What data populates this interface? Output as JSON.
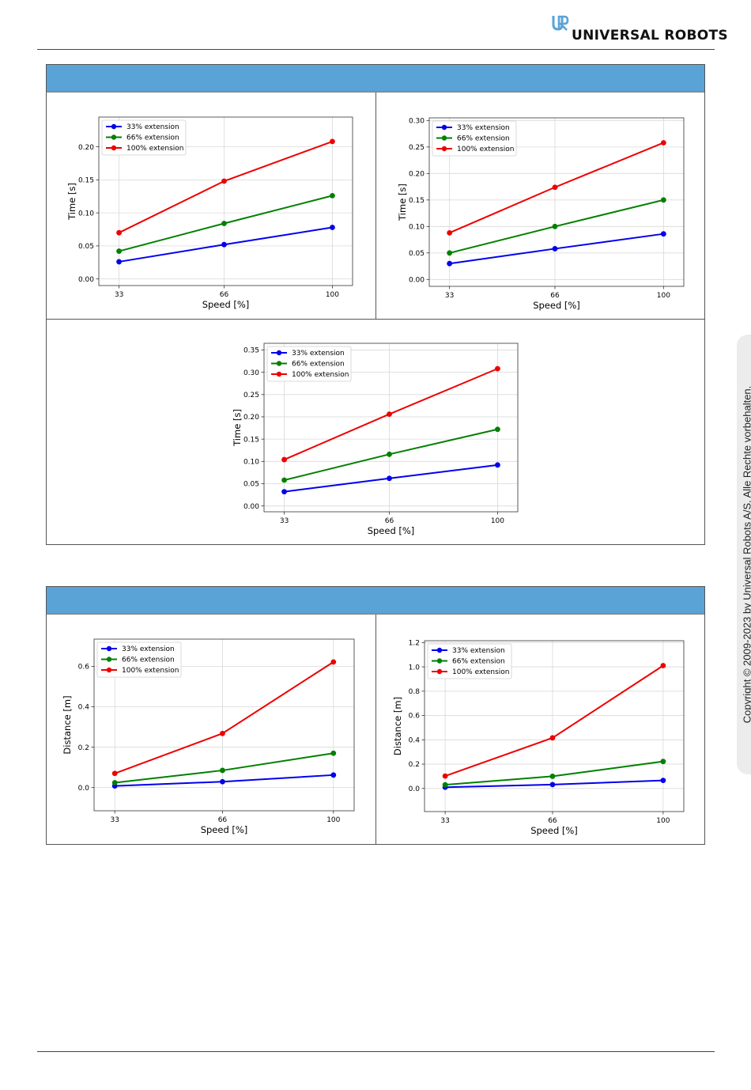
{
  "header": {
    "logo_text": "UNIVERSAL ROBOTS",
    "logo_mark_icon": "ur-logo-icon"
  },
  "colors": {
    "table_header": "#5aa3d6",
    "series_33": "#0000ee",
    "series_66": "#008000",
    "series_100": "#ee0000"
  },
  "sidebar": {
    "copyright": "Copyright © 2009-2023 by Universal Robots A/S. Alle Rechte vorbehalten."
  },
  "chart_data": [
    {
      "type": "line",
      "categories": [
        "33",
        "66",
        "100"
      ],
      "x": [
        33,
        66,
        100
      ],
      "xlabel": "Speed [%]",
      "ylabel": "Time [s]",
      "ylim": [
        -0.01,
        0.245
      ],
      "yticks": [
        0.0,
        0.05,
        0.1,
        0.15,
        0.2
      ],
      "ytick_labels": [
        "0.00",
        "0.05",
        "0.10",
        "0.15",
        "0.20"
      ],
      "grid": true,
      "legend": "upper-left",
      "series": [
        {
          "name": "33% extension",
          "color": "#0000ee",
          "values": [
            0.026,
            0.052,
            0.078
          ]
        },
        {
          "name": "66% extension",
          "color": "#008000",
          "values": [
            0.042,
            0.084,
            0.126
          ]
        },
        {
          "name": "100% extension",
          "color": "#ee0000",
          "values": [
            0.07,
            0.148,
            0.208
          ]
        }
      ]
    },
    {
      "type": "line",
      "categories": [
        "33",
        "66",
        "100"
      ],
      "x": [
        33,
        66,
        100
      ],
      "xlabel": "Speed [%]",
      "ylabel": "Time [s]",
      "ylim": [
        -0.013,
        0.305
      ],
      "yticks": [
        0.0,
        0.05,
        0.1,
        0.15,
        0.2,
        0.25,
        0.3
      ],
      "ytick_labels": [
        "0.00",
        "0.05",
        "0.10",
        "0.15",
        "0.20",
        "0.25",
        "0.30"
      ],
      "grid": true,
      "legend": "upper-left",
      "series": [
        {
          "name": "33% extension",
          "color": "#0000ee",
          "values": [
            0.03,
            0.058,
            0.086
          ]
        },
        {
          "name": "66% extension",
          "color": "#008000",
          "values": [
            0.05,
            0.1,
            0.15
          ]
        },
        {
          "name": "100% extension",
          "color": "#ee0000",
          "values": [
            0.088,
            0.174,
            0.258
          ]
        }
      ]
    },
    {
      "type": "line",
      "categories": [
        "33",
        "66",
        "100"
      ],
      "x": [
        33,
        66,
        100
      ],
      "xlabel": "Speed [%]",
      "ylabel": "Time [s]",
      "ylim": [
        -0.013,
        0.365
      ],
      "yticks": [
        0.0,
        0.05,
        0.1,
        0.15,
        0.2,
        0.25,
        0.3,
        0.35
      ],
      "ytick_labels": [
        "0.00",
        "0.05",
        "0.10",
        "0.15",
        "0.20",
        "0.25",
        "0.30",
        "0.35"
      ],
      "grid": true,
      "legend": "upper-left",
      "series": [
        {
          "name": "33% extension",
          "color": "#0000ee",
          "values": [
            0.032,
            0.062,
            0.092
          ]
        },
        {
          "name": "66% extension",
          "color": "#008000",
          "values": [
            0.058,
            0.116,
            0.172
          ]
        },
        {
          "name": "100% extension",
          "color": "#ee0000",
          "values": [
            0.104,
            0.206,
            0.308
          ]
        }
      ]
    },
    {
      "type": "line",
      "categories": [
        "33",
        "66",
        "100"
      ],
      "x": [
        33,
        66,
        100
      ],
      "xlabel": "Speed [%]",
      "ylabel": "Distance [m]",
      "ylim": [
        -0.115,
        0.735
      ],
      "yticks": [
        0.0,
        0.2,
        0.4,
        0.6
      ],
      "ytick_labels": [
        "0.0",
        "0.2",
        "0.4",
        "0.6"
      ],
      "grid": true,
      "legend": "upper-left",
      "series": [
        {
          "name": "33% extension",
          "color": "#0000ee",
          "values": [
            0.008,
            0.029,
            0.062
          ]
        },
        {
          "name": "66% extension",
          "color": "#008000",
          "values": [
            0.024,
            0.085,
            0.17
          ]
        },
        {
          "name": "100% extension",
          "color": "#ee0000",
          "values": [
            0.07,
            0.268,
            0.622
          ]
        }
      ]
    },
    {
      "type": "line",
      "categories": [
        "33",
        "66",
        "100"
      ],
      "x": [
        33,
        66,
        100
      ],
      "xlabel": "Speed [%]",
      "ylabel": "Distance [m]",
      "ylim": [
        -0.19,
        1.215
      ],
      "yticks": [
        0.0,
        0.2,
        0.4,
        0.6,
        0.8,
        1.0,
        1.2
      ],
      "ytick_labels": [
        "0.0",
        "0.2",
        "0.4",
        "0.6",
        "0.8",
        "1.0",
        "1.2"
      ],
      "grid": true,
      "legend": "upper-left",
      "series": [
        {
          "name": "33% extension",
          "color": "#0000ee",
          "values": [
            0.01,
            0.032,
            0.066
          ]
        },
        {
          "name": "66% extension",
          "color": "#008000",
          "values": [
            0.03,
            0.1,
            0.222
          ]
        },
        {
          "name": "100% extension",
          "color": "#ee0000",
          "values": [
            0.102,
            0.416,
            1.01
          ]
        }
      ]
    }
  ]
}
